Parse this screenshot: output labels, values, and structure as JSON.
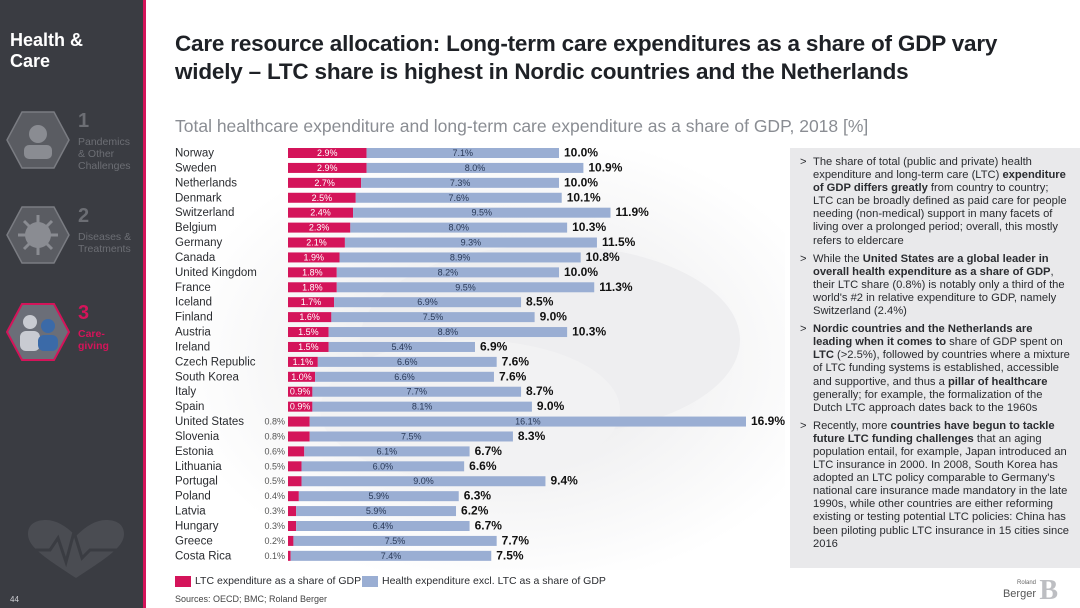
{
  "sidebar": {
    "title": "Health & Care",
    "page_number": "44",
    "items": [
      {
        "num": "1",
        "label": "Pandemics\n& Other\nChallenges",
        "active": false,
        "icon": "pandemic-icon"
      },
      {
        "num": "2",
        "label": "Diseases &\nTreatments",
        "active": false,
        "icon": "virus-icon"
      },
      {
        "num": "3",
        "label": "Care-\ngiving",
        "active": true,
        "icon": "caregiving-icon"
      }
    ],
    "heart_icon": "heartbeat-icon"
  },
  "header": {
    "title": "Care resource allocation: Long-term care expenditures as a share of GDP vary widely – LTC share is highest in Nordic countries and the Netherlands",
    "subtitle": "Total healthcare expenditure and long-term care expenditure as a share of GDP, 2018 [%]"
  },
  "chart_data": {
    "type": "bar",
    "orientation": "horizontal",
    "stacked": true,
    "title": "Total healthcare expenditure and long-term care expenditure as a share of GDP, 2018 [%]",
    "unit": "%",
    "categories": [
      "Norway",
      "Sweden",
      "Netherlands",
      "Denmark",
      "Switzerland",
      "Belgium",
      "Germany",
      "Canada",
      "United Kingdom",
      "France",
      "Iceland",
      "Finland",
      "Austria",
      "Ireland",
      "Czech Republic",
      "South Korea",
      "Italy",
      "Spain",
      "United States",
      "Slovenia",
      "Estonia",
      "Lithuania",
      "Portugal",
      "Poland",
      "Latvia",
      "Hungary",
      "Greece",
      "Costa Rica"
    ],
    "series": [
      {
        "name": "LTC expenditure as a share of GDP",
        "color": "#d4145a",
        "values": [
          2.9,
          2.9,
          2.7,
          2.5,
          2.4,
          2.3,
          2.1,
          1.9,
          1.8,
          1.8,
          1.7,
          1.6,
          1.5,
          1.5,
          1.1,
          1.0,
          0.9,
          0.9,
          0.8,
          0.8,
          0.6,
          0.5,
          0.5,
          0.4,
          0.3,
          0.3,
          0.2,
          0.1
        ],
        "labels": [
          "2.9%",
          "2.9%",
          "2.7%",
          "2.5%",
          "2.4%",
          "2.3%",
          "2.1%",
          "1.9%",
          "1.8%",
          "1.8%",
          "1.7%",
          "1.6%",
          "1.5%",
          "1.5%",
          "1.1%",
          "1.0%",
          "0.9%",
          "0.9%",
          "0.8%",
          "0.8%",
          "0.6%",
          "0.5%",
          "0.5%",
          "0.4%",
          "0.3%",
          "0.3%",
          "0.2%",
          "0.1%"
        ]
      },
      {
        "name": "Health expenditure excl. LTC as a share of GDP",
        "color": "#9aaed3",
        "values": [
          7.1,
          8.0,
          7.3,
          7.6,
          9.5,
          8.0,
          9.3,
          8.9,
          8.2,
          9.5,
          6.9,
          7.5,
          8.8,
          5.4,
          6.6,
          6.6,
          7.7,
          8.1,
          16.1,
          7.5,
          6.1,
          6.0,
          9.0,
          5.9,
          5.9,
          6.4,
          7.5,
          7.4
        ],
        "labels": [
          "7.1%",
          "8.0%",
          "7.3%",
          "7.6%",
          "9.5%",
          "8.0%",
          "9.3%",
          "8.9%",
          "8.2%",
          "9.5%",
          "6.9%",
          "7.5%",
          "8.8%",
          "5.4%",
          "6.6%",
          "6.6%",
          "7.7%",
          "8.1%",
          "16.1%",
          "7.5%",
          "6.1%",
          "6.0%",
          "9.0%",
          "5.9%",
          "5.9%",
          "6.4%",
          "7.5%",
          "7.4%"
        ]
      }
    ],
    "totals": [
      10.0,
      10.9,
      10.0,
      10.1,
      11.9,
      10.3,
      11.5,
      10.8,
      10.0,
      11.3,
      8.5,
      9.0,
      10.3,
      6.9,
      7.6,
      7.6,
      8.7,
      9.0,
      16.9,
      8.3,
      6.7,
      6.6,
      9.4,
      6.3,
      6.2,
      6.7,
      7.7,
      7.5
    ],
    "total_labels": [
      "10.0%",
      "10.9%",
      "10.0%",
      "10.1%",
      "11.9%",
      "10.3%",
      "11.5%",
      "10.8%",
      "10.0%",
      "11.3%",
      "8.5%",
      "9.0%",
      "10.3%",
      "6.9%",
      "7.6%",
      "7.6%",
      "8.7%",
      "9.0%",
      "16.9%",
      "8.3%",
      "6.7%",
      "6.6%",
      "9.4%",
      "6.3%",
      "6.2%",
      "6.7%",
      "7.7%",
      "7.5%"
    ],
    "xlim": [
      0,
      16.9
    ],
    "grid": false,
    "legend": "bottom-left"
  },
  "legend": {
    "ltc": "LTC expenditure as a share of GDP",
    "hc": "Health expenditure excl. LTC as a share of GDP"
  },
  "footer": {
    "sources": "Sources: OECD; BMC; Roland Berger",
    "logo_small": "Roland",
    "logo_large": "Berger",
    "logo_mark": "B"
  }
}
